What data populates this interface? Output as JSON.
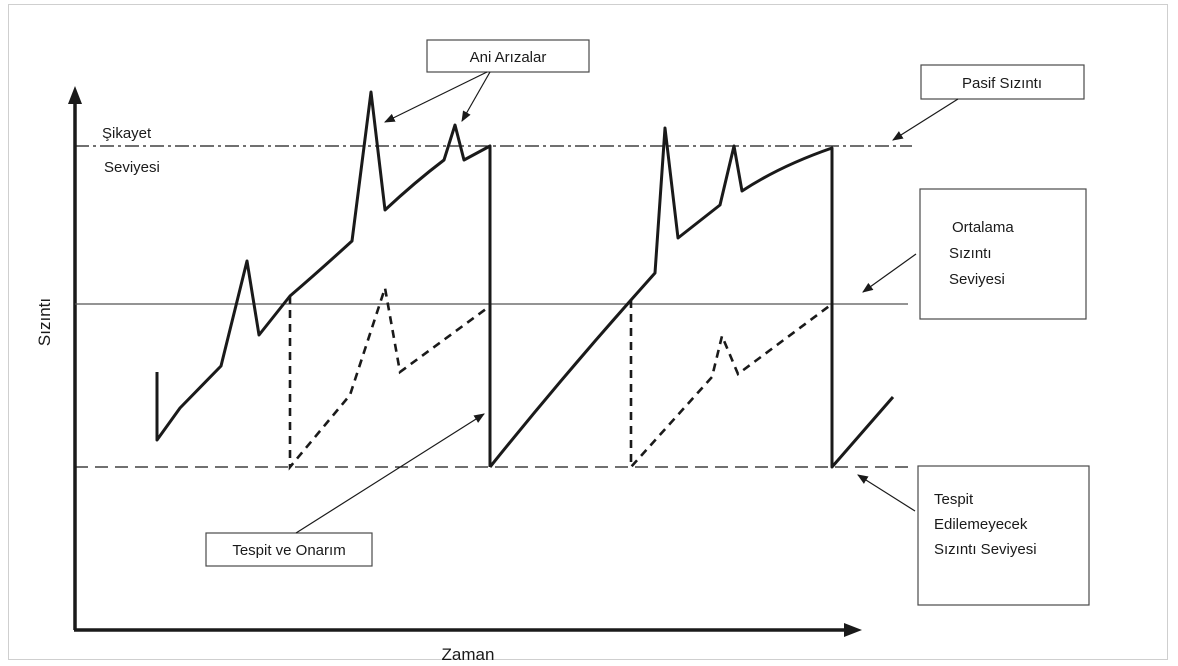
{
  "axes": {
    "x_label": "Zaman",
    "y_label": "Sızıntı"
  },
  "levels": {
    "complaint_line1": "Şikayet",
    "complaint_line2": "Seviyesi"
  },
  "callouts": {
    "sudden_failures": "Ani Arızalar",
    "passive_leak": "Pasif Sızıntı",
    "average_leak": [
      "Ortalama",
      "Sızıntı",
      "Seviyesi"
    ],
    "detect_repair": "Tespit ve Onarım",
    "undetectable_leak": [
      "Tespit",
      "Edilemeyecek",
      "Sızıntı Seviyesi"
    ]
  },
  "colors": {
    "stroke": "#1a1a1a",
    "thin_line": "#555555",
    "box_border": "#4a4a4a"
  }
}
